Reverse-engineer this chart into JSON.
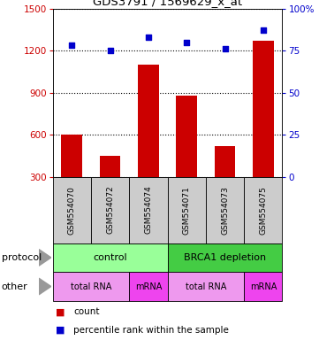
{
  "title": "GDS3791 / 1569629_x_at",
  "samples": [
    "GSM554070",
    "GSM554072",
    "GSM554074",
    "GSM554071",
    "GSM554073",
    "GSM554075"
  ],
  "counts": [
    600,
    450,
    1100,
    880,
    520,
    1270
  ],
  "percentiles": [
    78,
    75,
    83,
    80,
    76,
    87
  ],
  "ylim_left": [
    300,
    1500
  ],
  "ylim_right": [
    0,
    100
  ],
  "yticks_left": [
    300,
    600,
    900,
    1200,
    1500
  ],
  "yticks_right": [
    0,
    25,
    50,
    75,
    100
  ],
  "bar_color": "#cc0000",
  "dot_color": "#0000cc",
  "protocol_labels": [
    {
      "text": "control",
      "start": 0,
      "end": 3,
      "color": "#99ff99"
    },
    {
      "text": "BRCA1 depletion",
      "start": 3,
      "end": 6,
      "color": "#44cc44"
    }
  ],
  "other_labels": [
    {
      "text": "total RNA",
      "start": 0,
      "end": 2,
      "color": "#ee99ee"
    },
    {
      "text": "mRNA",
      "start": 2,
      "end": 3,
      "color": "#ee44ee"
    },
    {
      "text": "total RNA",
      "start": 3,
      "end": 5,
      "color": "#ee99ee"
    },
    {
      "text": "mRNA",
      "start": 5,
      "end": 6,
      "color": "#ee44ee"
    }
  ],
  "legend_count_color": "#cc0000",
  "legend_pct_color": "#0000cc",
  "left_axis_color": "#cc0000",
  "right_axis_color": "#0000cc",
  "sample_box_color": "#cccccc",
  "arrow_color": "#999999"
}
